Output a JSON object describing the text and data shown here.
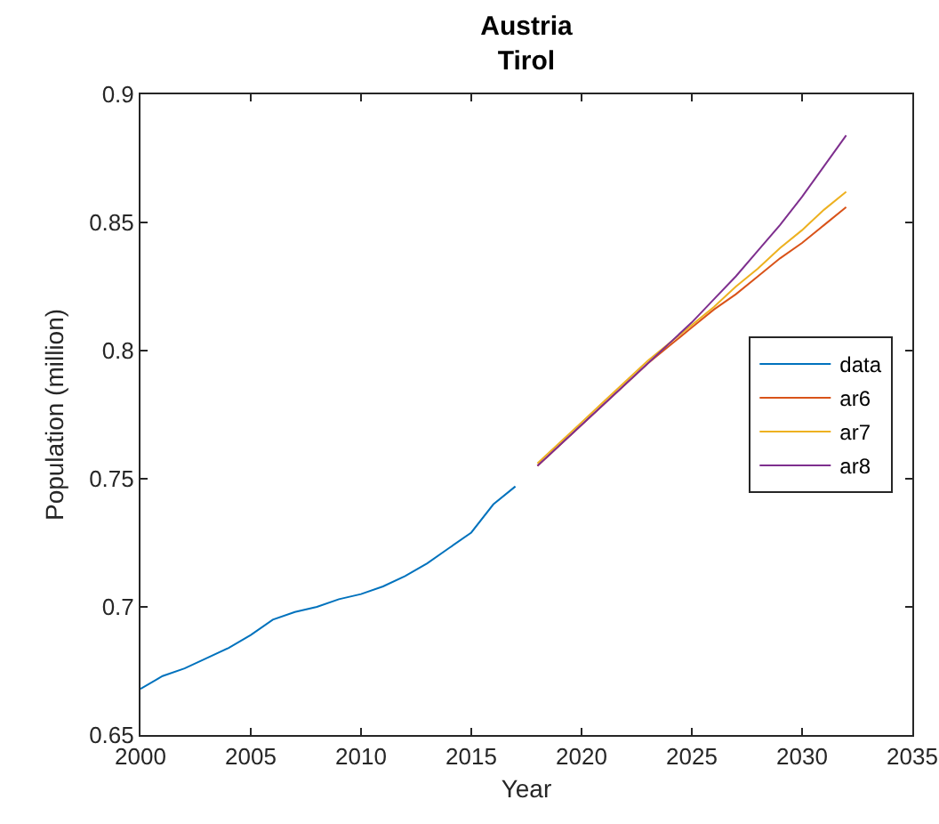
{
  "chart_data": {
    "type": "line",
    "title": "Austria\nTirol",
    "xlabel": "Year",
    "ylabel": "Population (million)",
    "xlim": [
      2000,
      2035
    ],
    "xticks": [
      2000,
      2005,
      2010,
      2015,
      2020,
      2025,
      2030,
      2035
    ],
    "ylim": [
      0.65,
      0.9
    ],
    "yticks": [
      0.65,
      0.7,
      0.75,
      0.8,
      0.85,
      0.9
    ],
    "grid": false,
    "legend": "right",
    "line_style": "solid",
    "marker": "none",
    "series": [
      {
        "name": "data",
        "color": "#0072bd",
        "x": [
          2000,
          2001,
          2002,
          2003,
          2004,
          2005,
          2006,
          2007,
          2008,
          2009,
          2010,
          2011,
          2012,
          2013,
          2014,
          2015,
          2016,
          2017
        ],
        "values": [
          0.668,
          0.673,
          0.676,
          0.68,
          0.684,
          0.689,
          0.695,
          0.698,
          0.7,
          0.703,
          0.705,
          0.708,
          0.712,
          0.717,
          0.723,
          0.729,
          0.74,
          0.747
        ]
      },
      {
        "name": "ar6",
        "color": "#d95319",
        "x": [
          2018,
          2019,
          2020,
          2021,
          2022,
          2023,
          2024,
          2025,
          2026,
          2027,
          2028,
          2029,
          2030,
          2031,
          2032
        ],
        "values": [
          0.755,
          0.763,
          0.771,
          0.779,
          0.787,
          0.795,
          0.802,
          0.809,
          0.816,
          0.822,
          0.829,
          0.836,
          0.842,
          0.849,
          0.856
        ]
      },
      {
        "name": "ar7",
        "color": "#edb120",
        "x": [
          2018,
          2019,
          2020,
          2021,
          2022,
          2023,
          2024,
          2025,
          2026,
          2027,
          2028,
          2029,
          2030,
          2031,
          2032
        ],
        "values": [
          0.756,
          0.764,
          0.772,
          0.78,
          0.788,
          0.796,
          0.803,
          0.81,
          0.817,
          0.825,
          0.832,
          0.84,
          0.847,
          0.855,
          0.862
        ]
      },
      {
        "name": "ar8",
        "color": "#7e2f8e",
        "x": [
          2018,
          2019,
          2020,
          2021,
          2022,
          2023,
          2024,
          2025,
          2026,
          2027,
          2028,
          2029,
          2030,
          2031,
          2032
        ],
        "values": [
          0.755,
          0.763,
          0.771,
          0.779,
          0.787,
          0.795,
          0.803,
          0.811,
          0.82,
          0.829,
          0.839,
          0.849,
          0.86,
          0.872,
          0.884
        ]
      }
    ]
  }
}
